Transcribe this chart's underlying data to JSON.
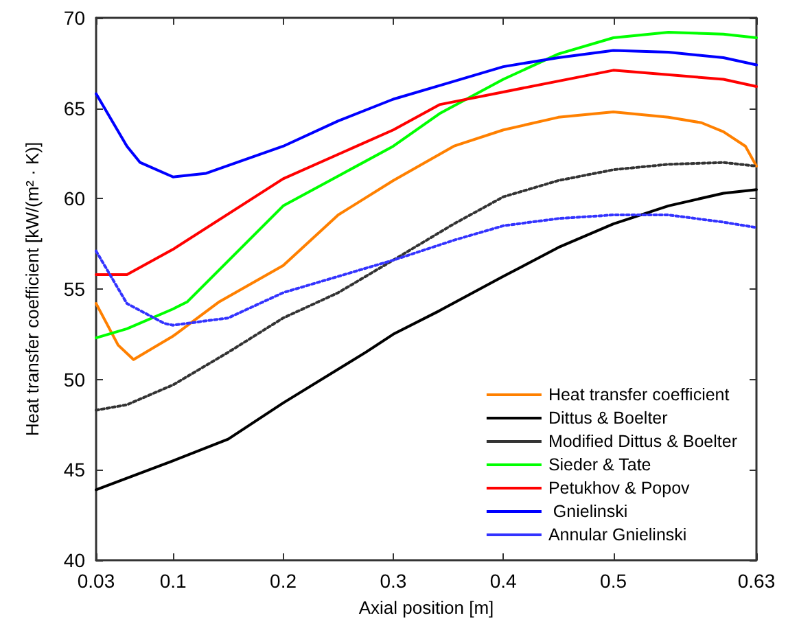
{
  "chart_data": {
    "type": "line",
    "xlabel": "Axial position [m]",
    "ylabel": "Heat transfer coefficient [kW/(m² · K)]",
    "xlim": [
      0.03,
      0.63
    ],
    "xticks": [
      0.03,
      0.1,
      0.2,
      0.3,
      0.4,
      0.5,
      0.63
    ],
    "ylim": [
      40,
      70
    ],
    "yticks": [
      40,
      45,
      50,
      55,
      60,
      65,
      70
    ],
    "grid": false,
    "legend": "bottom right",
    "marker": "none",
    "series": [
      {
        "name": "Heat transfer coefficient",
        "color": "#ff8000",
        "line_style": "solid",
        "x": [
          0.03,
          0.05,
          0.064,
          0.1,
          0.142,
          0.2,
          0.25,
          0.3,
          0.355,
          0.4,
          0.45,
          0.5,
          0.55,
          0.58,
          0.6,
          0.62,
          0.63
        ],
        "values": [
          54.2,
          51.9,
          51.1,
          52.4,
          54.3,
          56.3,
          59.1,
          61.0,
          62.9,
          63.8,
          64.5,
          64.8,
          64.5,
          64.2,
          63.7,
          62.9,
          61.8
        ]
      },
      {
        "name": "Dittus & Boelter",
        "color": "#000000",
        "line_style": "solid",
        "x": [
          0.03,
          0.1,
          0.15,
          0.2,
          0.275,
          0.3,
          0.342,
          0.4,
          0.45,
          0.5,
          0.55,
          0.6,
          0.63
        ],
        "values": [
          43.9,
          45.5,
          46.7,
          48.7,
          51.5,
          52.5,
          53.8,
          55.7,
          57.3,
          58.6,
          59.6,
          60.3,
          60.5
        ]
      },
      {
        "name": "Modified Dittus & Boelter",
        "color": "#333333",
        "line_style": "dotted",
        "x": [
          0.03,
          0.058,
          0.1,
          0.15,
          0.2,
          0.25,
          0.3,
          0.355,
          0.4,
          0.45,
          0.5,
          0.55,
          0.6,
          0.63
        ],
        "values": [
          48.3,
          48.6,
          49.7,
          51.5,
          53.4,
          54.8,
          56.6,
          58.6,
          60.1,
          61.0,
          61.6,
          61.9,
          62.0,
          61.8
        ]
      },
      {
        "name": "Sieder & Tate",
        "color": "#00ff00",
        "line_style": "solid",
        "x": [
          0.03,
          0.058,
          0.1,
          0.113,
          0.2,
          0.3,
          0.342,
          0.4,
          0.45,
          0.5,
          0.55,
          0.6,
          0.63
        ],
        "values": [
          52.3,
          52.8,
          53.9,
          54.3,
          59.6,
          62.9,
          64.7,
          66.6,
          68.0,
          68.9,
          69.2,
          69.1,
          68.9
        ]
      },
      {
        "name": "Petukhov & Popov",
        "color": "#ff0000",
        "line_style": "solid",
        "x": [
          0.03,
          0.058,
          0.1,
          0.2,
          0.3,
          0.342,
          0.4,
          0.5,
          0.6,
          0.63
        ],
        "values": [
          55.8,
          55.8,
          57.2,
          61.1,
          63.8,
          65.2,
          65.9,
          67.1,
          66.6,
          66.2
        ]
      },
      {
        "name": " Gnielinski",
        "color": "#0000ff",
        "line_style": "solid",
        "x": [
          0.03,
          0.058,
          0.07,
          0.1,
          0.13,
          0.2,
          0.25,
          0.3,
          0.35,
          0.4,
          0.45,
          0.5,
          0.55,
          0.6,
          0.63
        ],
        "values": [
          65.8,
          62.9,
          62.0,
          61.2,
          61.4,
          62.9,
          64.3,
          65.5,
          66.4,
          67.3,
          67.8,
          68.2,
          68.1,
          67.8,
          67.4
        ]
      },
      {
        "name": "Annular Gnielinski",
        "color": "#3333ff",
        "line_style": "dotted",
        "x": [
          0.03,
          0.058,
          0.092,
          0.1,
          0.15,
          0.2,
          0.3,
          0.355,
          0.4,
          0.45,
          0.5,
          0.55,
          0.6,
          0.63
        ],
        "values": [
          57.1,
          54.2,
          53.1,
          53.0,
          53.4,
          54.8,
          56.6,
          57.7,
          58.5,
          58.9,
          59.1,
          59.1,
          58.7,
          58.4
        ]
      }
    ]
  }
}
